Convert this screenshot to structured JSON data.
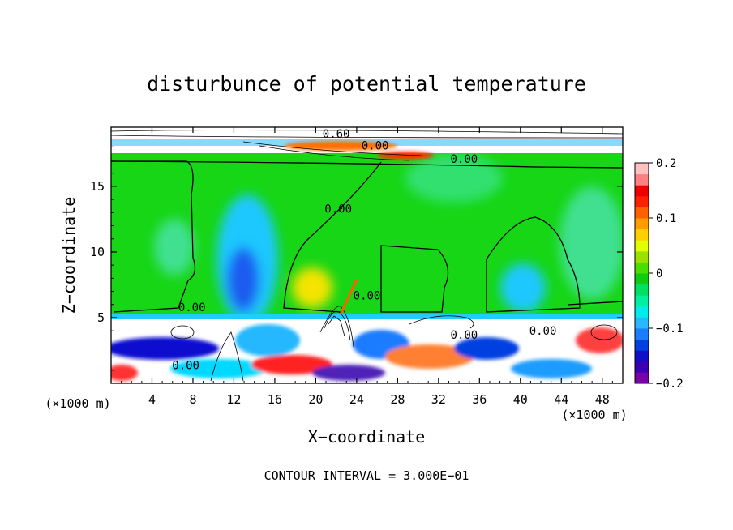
{
  "chart_data": {
    "type": "heatmap",
    "title": "disturbunce of potential temperature",
    "xlabel": "X−coordinate",
    "ylabel": "Z−coordinate",
    "x_unit_left": "(×1000 m)",
    "x_unit_right": "(×1000 m)",
    "xlim": [
      0,
      50
    ],
    "ylim": [
      0,
      19.5
    ],
    "x_ticks": [
      4,
      8,
      12,
      16,
      20,
      24,
      28,
      32,
      36,
      40,
      44,
      48
    ],
    "y_ticks": [
      5,
      10,
      15
    ],
    "colorbar": {
      "range": [
        -0.2,
        0.2
      ],
      "tick_values": [
        0.2,
        0.1,
        0,
        -0.1,
        -0.2
      ],
      "tick_labels": [
        "0.2",
        "0.1",
        "0",
        "−0.1",
        "−0.2"
      ],
      "colors": [
        "#7a00a8",
        "#3c00b4",
        "#1010c8",
        "#0040e0",
        "#1a7cff",
        "#28b8ff",
        "#00ecec",
        "#00f0a0",
        "#00e060",
        "#10cc10",
        "#4ade00",
        "#9ae000",
        "#e0ff00",
        "#ffd000",
        "#ff9c00",
        "#ff6000",
        "#ff2000",
        "#ee0000",
        "#ff8080",
        "#ffc0c0"
      ]
    },
    "contour_labels": [
      {
        "text": "0.00",
        "x": 25.8,
        "y": 18.1
      },
      {
        "text": "0.00",
        "x": 34.5,
        "y": 17.1
      },
      {
        "text": "0.00",
        "x": 22.2,
        "y": 13.3
      },
      {
        "text": "0.00",
        "x": 25.0,
        "y": 6.7
      },
      {
        "text": "0.00",
        "x": 7.9,
        "y": 5.8
      },
      {
        "text": "0.00",
        "x": 34.5,
        "y": 3.7
      },
      {
        "text": "0.00",
        "x": 42.2,
        "y": 4.0
      },
      {
        "text": "0.00",
        "x": 7.3,
        "y": 1.4
      },
      {
        "text": "0.60",
        "x": 22.0,
        "y": 19.0
      }
    ],
    "footer": "CONTOUR INTERVAL = 3.000E−01"
  }
}
